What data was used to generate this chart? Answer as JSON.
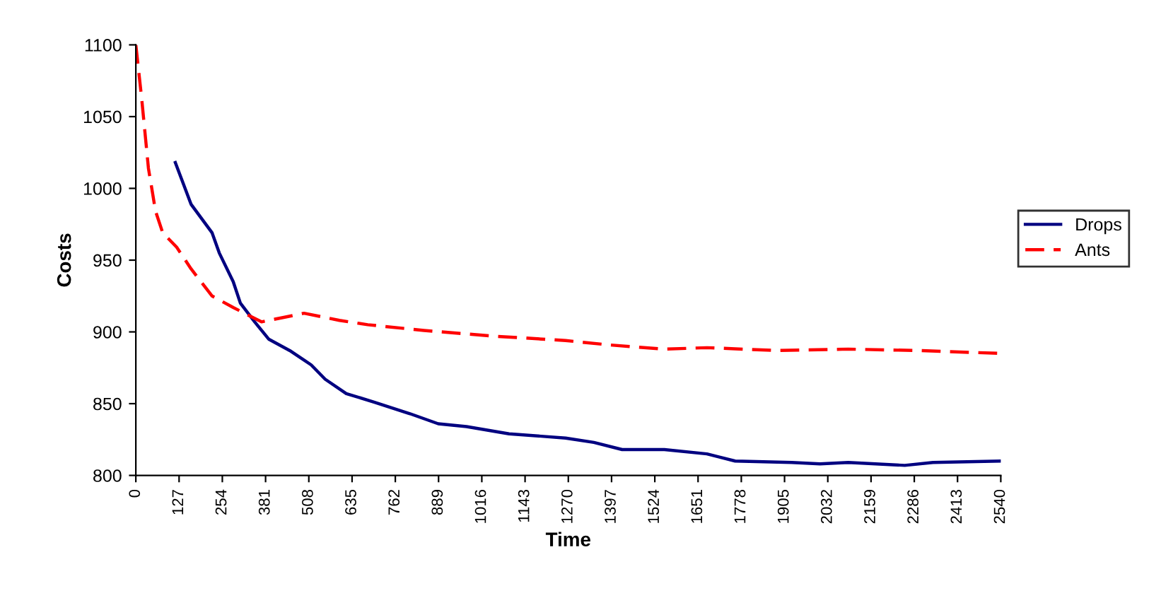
{
  "chart_data": {
    "type": "line",
    "xlabel": "Time",
    "ylabel": "Costs",
    "xlim": [
      0,
      2540
    ],
    "xticks": [
      0,
      127,
      254,
      381,
      508,
      635,
      762,
      889,
      1016,
      1143,
      1270,
      1397,
      1524,
      1651,
      1778,
      1905,
      2032,
      2159,
      2286,
      2413,
      2540
    ],
    "ylim": [
      800,
      1100
    ],
    "yticks": [
      800,
      850,
      900,
      950,
      1000,
      1050,
      1100
    ],
    "grid": false,
    "legend": "right",
    "series": [
      {
        "name": "Drops",
        "color": "#000080",
        "line_style": "solid",
        "x": [
          116,
          162,
          224,
          245,
          286,
          307,
          349,
          390,
          452,
          515,
          556,
          618,
          701,
          805,
          888,
          971,
          1096,
          1262,
          1345,
          1428,
          1552,
          1677,
          1760,
          1926,
          2009,
          2092,
          2258,
          2341,
          2540
        ],
        "values": [
          1018,
          989,
          969,
          955,
          935,
          920,
          907,
          895,
          887,
          877,
          867,
          857,
          851,
          843,
          836,
          834,
          829,
          826,
          823,
          818,
          818,
          815,
          810,
          809,
          808,
          809,
          807,
          809,
          810
        ]
      },
      {
        "name": "Ants",
        "color": "#ff0000",
        "line_style": "dashed",
        "x": [
          0,
          17,
          37,
          58,
          79,
          120,
          162,
          224,
          286,
          369,
          432,
          494,
          598,
          681,
          846,
          1054,
          1262,
          1386,
          1552,
          1677,
          1884,
          2092,
          2299,
          2540
        ],
        "values": [
          1100,
          1063,
          1014,
          984,
          969,
          959,
          944,
          925,
          917,
          907,
          910,
          913,
          908,
          905,
          901,
          897,
          894,
          891,
          888,
          889,
          887,
          888,
          887,
          885
        ]
      }
    ]
  }
}
